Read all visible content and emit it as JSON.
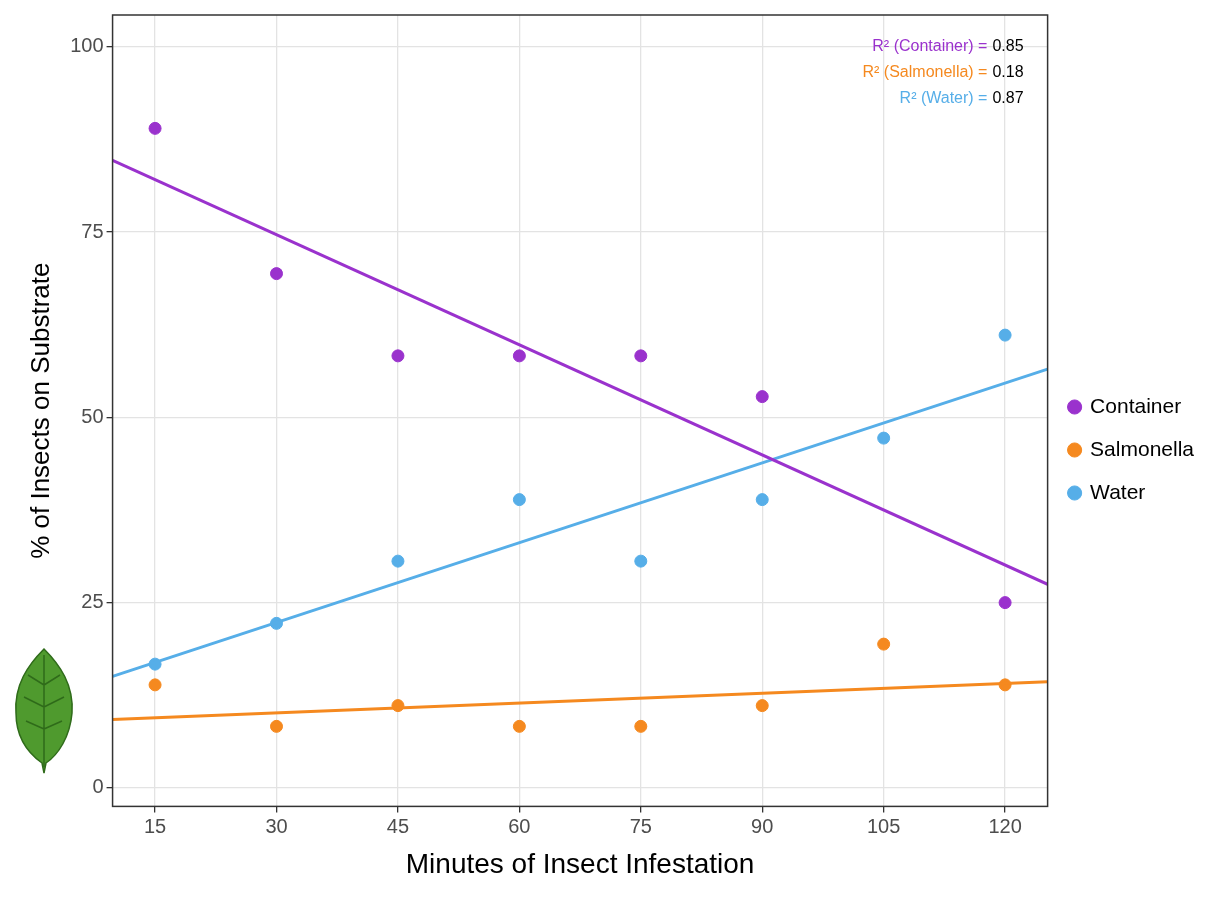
{
  "chart_data": {
    "type": "scatter",
    "x_label": "Minutes of Insect Infestation",
    "y_label": "% of Insects on Substrate",
    "x": [
      15,
      30,
      45,
      60,
      75,
      90,
      105,
      120
    ],
    "series": [
      {
        "name": "Container",
        "color": "#9a32cd",
        "values": [
          89,
          69.4,
          58.3,
          58.3,
          58.3,
          52.8,
          null,
          25
        ]
      },
      {
        "name": "Salmonella",
        "color": "#f5891f",
        "values": [
          13.9,
          8.3,
          11.1,
          8.3,
          8.3,
          11.1,
          19.4,
          13.9
        ]
      },
      {
        "name": "Water",
        "color": "#56aee8",
        "values": [
          16.7,
          22.2,
          30.6,
          38.9,
          30.6,
          38.9,
          47.2,
          61.1
        ]
      }
    ],
    "annotations": [
      {
        "text": "R² (Container) =",
        "value": 0.85,
        "series": "Container"
      },
      {
        "text": "R² (Salmonella) =",
        "value": 0.18,
        "series": "Salmonella"
      },
      {
        "text": "R² (Water) =",
        "value": 0.87,
        "series": "Water"
      }
    ],
    "xlim": [
      9.75,
      125.25
    ],
    "xticks": [
      15,
      30,
      45,
      60,
      75,
      90,
      105,
      120
    ],
    "ylim": [
      -2.5,
      104.3
    ],
    "yticks": [
      0,
      25,
      50,
      75,
      100
    ],
    "grid": true,
    "legend": "right",
    "marker": "circle"
  }
}
